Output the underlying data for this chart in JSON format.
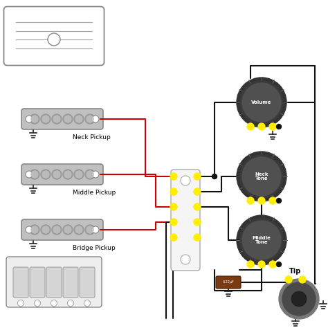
{
  "bg_color": "#ffffff",
  "pickup_color": "#c0c0c0",
  "pickup_outline": "#888888",
  "knob_dark": "#444444",
  "knob_ring": "#666666",
  "knob_body": "#555555",
  "yellow": "#ffee00",
  "black_wire": "#111111",
  "red_wire": "#cc0000",
  "cap_color": "#7a3b10",
  "switch_bg": "#f5f5f5",
  "switch_outline": "#aaaaaa",
  "pickup_labels": [
    "Neck Pickup",
    "Middle Pickup",
    "Bridge Pickup"
  ],
  "knob_labels": [
    "Volume",
    "Neck\nTone",
    "Middle\nTone"
  ],
  "cap_label": "0.22μF",
  "tip_label": "Tip",
  "humbucker_fill": "#ffffff",
  "humbucker_line": "#888888",
  "bridge_fill": "#eeeeee",
  "bridge_line": "#888888"
}
